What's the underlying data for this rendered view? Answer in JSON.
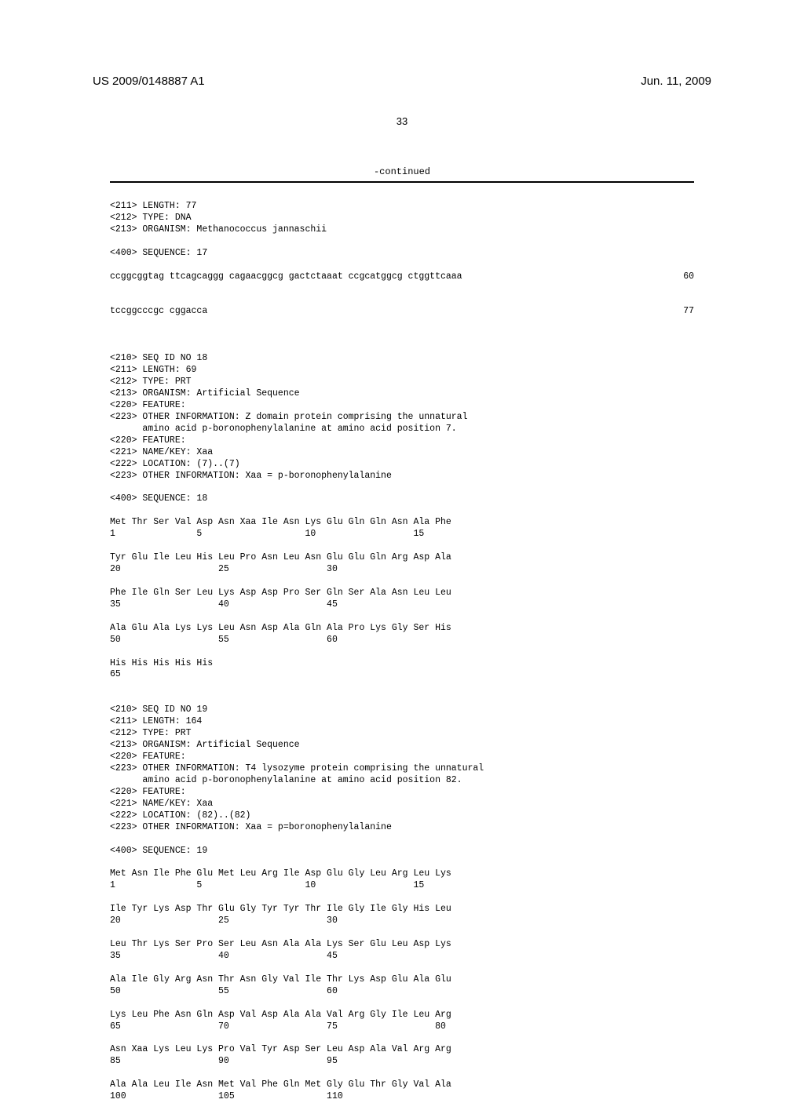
{
  "header": {
    "doc_number": "US 2009/0148887 A1",
    "doc_date": "Jun. 11, 2009",
    "page_number": "33"
  },
  "continued_label": "-continued",
  "seq17": {
    "line1": "<211> LENGTH: 77",
    "line2": "<212> TYPE: DNA",
    "line3": "<213> ORGANISM: Methanococcus jannaschii",
    "line4": "<400> SEQUENCE: 17",
    "seq_line1": "ccggcggtag ttcagcaggg cagaacggcg gactctaaat ccgcatggcg ctggttcaaa",
    "seq_line1_num": "60",
    "seq_line2": "tccggcccgc cggacca",
    "seq_line2_num": "77"
  },
  "seq18": {
    "line1": "<210> SEQ ID NO 18",
    "line2": "<211> LENGTH: 69",
    "line3": "<212> TYPE: PRT",
    "line4": "<213> ORGANISM: Artificial Sequence",
    "line5": "<220> FEATURE:",
    "line6": "<223> OTHER INFORMATION: Z domain protein comprising the unnatural",
    "line7": "      amino acid p-boronophenylalanine at amino acid position 7.",
    "line8": "<220> FEATURE:",
    "line9": "<221> NAME/KEY: Xaa",
    "line10": "<222> LOCATION: (7)..(7)",
    "line11": "<223> OTHER INFORMATION: Xaa = p-boronophenylalanine",
    "line12": "<400> SEQUENCE: 18",
    "protein1": "Met Thr Ser Val Asp Asn Xaa Ile Asn Lys Glu Gln Gln Asn Ala Phe",
    "protein1_nums": "1               5                   10                  15",
    "protein2": "Tyr Glu Ile Leu His Leu Pro Asn Leu Asn Glu Glu Gln Arg Asp Ala",
    "protein2_nums": "20                  25                  30",
    "protein3": "Phe Ile Gln Ser Leu Lys Asp Asp Pro Ser Gln Ser Ala Asn Leu Leu",
    "protein3_nums": "35                  40                  45",
    "protein4": "Ala Glu Ala Lys Lys Leu Asn Asp Ala Gln Ala Pro Lys Gly Ser His",
    "protein4_nums": "50                  55                  60",
    "protein5": "His His His His His",
    "protein5_nums": "65"
  },
  "seq19": {
    "line1": "<210> SEQ ID NO 19",
    "line2": "<211> LENGTH: 164",
    "line3": "<212> TYPE: PRT",
    "line4": "<213> ORGANISM: Artificial Sequence",
    "line5": "<220> FEATURE:",
    "line6": "<223> OTHER INFORMATION: T4 lysozyme protein comprising the unnatural",
    "line7": "      amino acid p-boronophenylalanine at amino acid position 82.",
    "line8": "<220> FEATURE:",
    "line9": "<221> NAME/KEY: Xaa",
    "line10": "<222> LOCATION: (82)..(82)",
    "line11": "<223> OTHER INFORMATION: Xaa = p=boronophenylalanine",
    "line12": "<400> SEQUENCE: 19",
    "protein1": "Met Asn Ile Phe Glu Met Leu Arg Ile Asp Glu Gly Leu Arg Leu Lys",
    "protein1_nums": "1               5                   10                  15",
    "protein2": "Ile Tyr Lys Asp Thr Glu Gly Tyr Tyr Thr Ile Gly Ile Gly His Leu",
    "protein2_nums": "20                  25                  30",
    "protein3": "Leu Thr Lys Ser Pro Ser Leu Asn Ala Ala Lys Ser Glu Leu Asp Lys",
    "protein3_nums": "35                  40                  45",
    "protein4": "Ala Ile Gly Arg Asn Thr Asn Gly Val Ile Thr Lys Asp Glu Ala Glu",
    "protein4_nums": "50                  55                  60",
    "protein5": "Lys Leu Phe Asn Gln Asp Val Asp Ala Ala Val Arg Gly Ile Leu Arg",
    "protein5_nums": "65                  70                  75                  80",
    "protein6": "Asn Xaa Lys Leu Lys Pro Val Tyr Asp Ser Leu Asp Ala Val Arg Arg",
    "protein6_nums": "85                  90                  95",
    "protein7": "Ala Ala Leu Ile Asn Met Val Phe Gln Met Gly Glu Thr Gly Val Ala",
    "protein7_nums": "100                 105                 110"
  }
}
